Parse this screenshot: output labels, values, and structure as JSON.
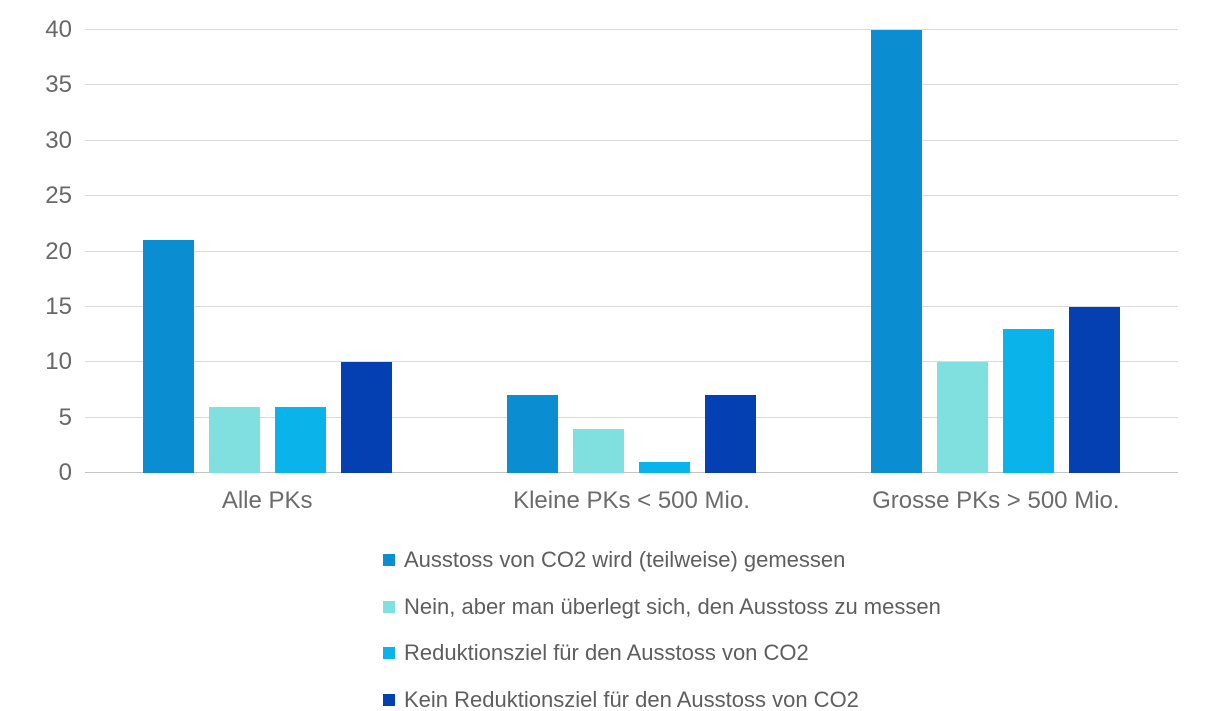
{
  "chart_data": {
    "type": "bar",
    "title": "",
    "xlabel": "",
    "ylabel": "",
    "categories": [
      "Alle PKs",
      "Kleine PKs < 500 Mio.",
      "Grosse PKs > 500 Mio."
    ],
    "series": [
      {
        "name": "Ausstoss von CO2 wird (teilweise) gemessen",
        "color": "#0a8dd1",
        "values": [
          21,
          7,
          40
        ]
      },
      {
        "name": "Nein, aber man überlegt sich, den Ausstoss zu messen",
        "color": "#80e0e0",
        "values": [
          6,
          4,
          10
        ]
      },
      {
        "name": "Reduktionsziel für den Ausstoss von CO2",
        "color": "#0ab4ea",
        "values": [
          6,
          1,
          13
        ]
      },
      {
        "name": "Kein Reduktionsziel für den Ausstoss von CO2",
        "color": "#0540b2",
        "values": [
          10,
          7,
          15
        ]
      }
    ],
    "y_ticks": [
      0,
      5,
      10,
      15,
      20,
      25,
      30,
      35,
      40
    ],
    "ylim": [
      0,
      40
    ],
    "grid": true,
    "legend_position": "bottom"
  },
  "colors": {
    "background": "#ffffff",
    "gridline": "#dadada",
    "baseline": "#c4c4c4",
    "tick_text": "#686868",
    "legend_text": "#5e5e5e"
  }
}
